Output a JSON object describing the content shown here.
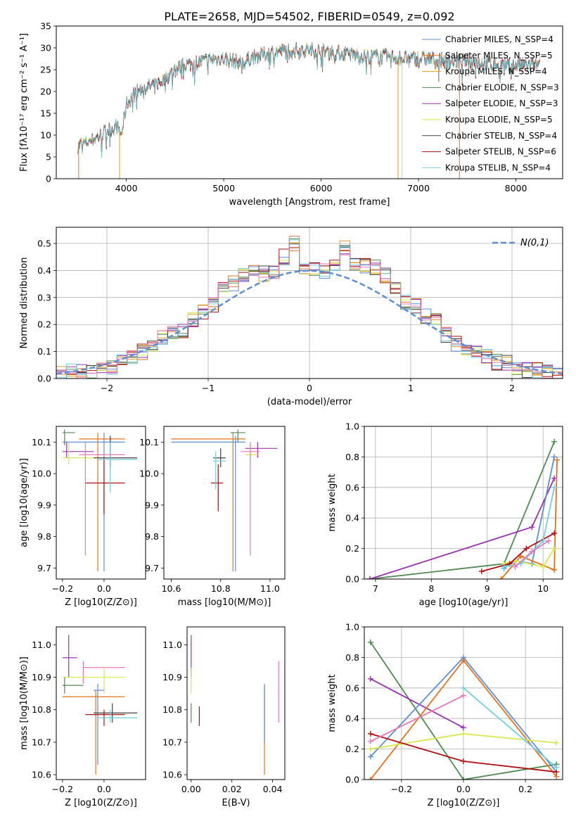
{
  "page": {
    "title": "PLATE=2658, MJD=54502, FIBERID=0549, z=0.092"
  },
  "colors": {
    "chabrier_miles": "#5b8fd6",
    "salpeter_miles": "#e8701a",
    "kroupa_miles": "#e0a31a",
    "chabrier_elodie": "#4f8a4f",
    "salpeter_elodie": "#9b30b0",
    "kroupa_elodie": "#d8e84a",
    "chabrier_stelib": "#404040",
    "salpeter_stelib": "#b01010",
    "kroupa_stelib": "#70d0e0",
    "pink": "#e878b8",
    "normal_curve": "#5b8fd6"
  },
  "chart_data": [
    {
      "id": "spectrum",
      "type": "line",
      "title": "PLATE=2658, MJD=54502, FIBERID=0549, z=0.092",
      "xlabel": "wavelength [Angstrom, rest frame]",
      "ylabel": "Flux [fλ10⁻¹⁷ erg cm⁻² s⁻¹ A⁻¹]",
      "xlim": [
        3280,
        8480
      ],
      "ylim": [
        0,
        35
      ],
      "xticks": [
        4000,
        5000,
        6000,
        7000,
        8000
      ],
      "yticks": [
        0,
        5,
        10,
        15,
        20,
        25,
        30,
        35
      ],
      "continuum": [
        [
          3500,
          7.5
        ],
        [
          3600,
          8.5
        ],
        [
          3700,
          9.5
        ],
        [
          3800,
          11
        ],
        [
          3900,
          12
        ],
        [
          3950,
          10
        ],
        [
          4000,
          17
        ],
        [
          4100,
          20
        ],
        [
          4200,
          21
        ],
        [
          4300,
          21.5
        ],
        [
          4400,
          23
        ],
        [
          4500,
          25
        ],
        [
          4600,
          26
        ],
        [
          4700,
          26.5
        ],
        [
          4800,
          27
        ],
        [
          4900,
          27.5
        ],
        [
          5000,
          27.5
        ],
        [
          5100,
          27
        ],
        [
          5200,
          26.5
        ],
        [
          5300,
          28
        ],
        [
          5500,
          29
        ],
        [
          5700,
          29.5
        ],
        [
          5900,
          29.5
        ],
        [
          6100,
          29
        ],
        [
          6300,
          28.5
        ],
        [
          6500,
          28
        ],
        [
          6700,
          28
        ],
        [
          6900,
          27.5
        ],
        [
          7100,
          27.5
        ],
        [
          7300,
          27
        ],
        [
          7500,
          27
        ],
        [
          7700,
          26.5
        ],
        [
          7900,
          26
        ],
        [
          8100,
          26
        ],
        [
          8250,
          26
        ]
      ],
      "legend": [
        {
          "label": "Chabrier MILES, N_SSP=4",
          "color_key": "chabrier_miles"
        },
        {
          "label": "Salpeter MILES, N_SSP=5",
          "color_key": "salpeter_miles"
        },
        {
          "label": "Kroupa MILES, N_SSP=4",
          "color_key": "kroupa_miles"
        },
        {
          "label": "Chabrier ELODIE, N_SSP=3",
          "color_key": "chabrier_elodie"
        },
        {
          "label": "Salpeter ELODIE, N_SSP=3",
          "color_key": "salpeter_elodie"
        },
        {
          "label": "Kroupa ELODIE, N_SSP=5",
          "color_key": "kroupa_elodie"
        },
        {
          "label": "Chabrier STELIB, N_SSP=4",
          "color_key": "chabrier_stelib"
        },
        {
          "label": "Salpeter STELIB, N_SSP=6",
          "color_key": "salpeter_stelib"
        },
        {
          "label": "Kroupa STELIB, N_SSP=4",
          "color_key": "kroupa_stelib"
        }
      ]
    },
    {
      "id": "residuals",
      "type": "line",
      "xlabel": "(data-model)/error",
      "ylabel": "Normed distribution",
      "xlim": [
        -2.5,
        2.5
      ],
      "ylim": [
        0,
        0.56
      ],
      "xticks": [
        -2,
        -1,
        0,
        1,
        2
      ],
      "yticks": [
        0.0,
        0.1,
        0.2,
        0.3,
        0.4,
        0.5
      ],
      "grid": true,
      "legend": "N(0,1)",
      "histogram": [
        0.02,
        0.03,
        0.03,
        0.02,
        0.03,
        0.04,
        0.06,
        0.08,
        0.1,
        0.12,
        0.15,
        0.17,
        0.18,
        0.22,
        0.25,
        0.27,
        0.33,
        0.35,
        0.38,
        0.4,
        0.39,
        0.4,
        0.45,
        0.5,
        0.4,
        0.41,
        0.4,
        0.42,
        0.48,
        0.43,
        0.42,
        0.41,
        0.38,
        0.33,
        0.28,
        0.27,
        0.23,
        0.21,
        0.16,
        0.13,
        0.11,
        0.1,
        0.08,
        0.06,
        0.06,
        0.04,
        0.03,
        0.03,
        0.02,
        0.02
      ]
    },
    {
      "id": "age_vs_z",
      "type": "scatter",
      "xlabel": "Z [log10(Z/Z⊙)]",
      "ylabel": "age  [log10(age/yr)]",
      "xlim": [
        -0.23,
        0.2
      ],
      "ylim": [
        9.665,
        10.15
      ],
      "xticks": [
        -0.2,
        0.0
      ],
      "yticks": [
        9.7,
        9.8,
        9.9,
        10.0,
        10.1
      ],
      "points": [
        {
          "c": "chabrier_miles",
          "x": 0.0,
          "y": 10.1,
          "x0": -0.2,
          "x1": 0.1,
          "y0": 9.69,
          "y1": 10.13
        },
        {
          "c": "salpeter_miles",
          "x": -0.03,
          "y": 10.11,
          "x0": -0.12,
          "x1": 0.1,
          "y0": 9.69,
          "y1": 10.13
        },
        {
          "c": "chabrier_elodie",
          "x": -0.19,
          "y": 10.13,
          "x0": -0.2,
          "x1": -0.14,
          "y0": 10.09,
          "y1": 10.14
        },
        {
          "c": "salpeter_elodie",
          "x": -0.18,
          "y": 10.07,
          "x0": -0.2,
          "x1": -0.05,
          "y0": 10.05,
          "y1": 10.1
        },
        {
          "c": "kroupa_elodie",
          "x": -0.17,
          "y": 10.05,
          "x0": -0.2,
          "x1": -0.05,
          "y0": 10.03,
          "y1": 10.1
        },
        {
          "c": "chabrier_stelib",
          "x": 0.03,
          "y": 10.05,
          "x0": -0.05,
          "x1": 0.16,
          "y0": 10.02,
          "y1": 10.12
        },
        {
          "c": "salpeter_stelib",
          "x": 0.0,
          "y": 9.97,
          "x0": -0.09,
          "x1": 0.1,
          "y0": 9.87,
          "y1": 10.05
        },
        {
          "c": "kroupa_stelib",
          "x": 0.03,
          "y": 10.045,
          "x0": -0.03,
          "x1": 0.16,
          "y0": 9.94,
          "y1": 10.1
        },
        {
          "c": "pink",
          "x": -0.09,
          "y": 10.06,
          "x0": -0.12,
          "x1": 0.1,
          "y0": 9.74,
          "y1": 10.1
        }
      ]
    },
    {
      "id": "age_vs_mass",
      "type": "scatter",
      "xlabel": "mass [log10(M/M⊙)]",
      "ylabel": "",
      "xlim": [
        10.57,
        11.06
      ],
      "ylim": [
        9.665,
        10.15
      ],
      "xticks": [
        10.6,
        10.8,
        11.0
      ],
      "yticks": [
        9.7,
        9.8,
        9.9,
        10.0,
        10.1
      ],
      "points": [
        {
          "c": "chabrier_miles",
          "x": 10.86,
          "y": 10.1,
          "x0": 10.6,
          "x1": 10.9,
          "y0": 9.69,
          "y1": 10.12
        },
        {
          "c": "salpeter_miles",
          "x": 10.85,
          "y": 10.11,
          "x0": 10.6,
          "x1": 10.9,
          "y0": 9.69,
          "y1": 10.13
        },
        {
          "c": "chabrier_elodie",
          "x": 10.87,
          "y": 10.13,
          "x0": 10.84,
          "x1": 10.9,
          "y0": 10.1,
          "y1": 10.14
        },
        {
          "c": "salpeter_elodie",
          "x": 10.95,
          "y": 10.08,
          "x0": 10.9,
          "x1": 11.03,
          "y0": 10.05,
          "y1": 10.1
        },
        {
          "c": "kroupa_elodie",
          "x": 10.92,
          "y": 10.06,
          "x0": 10.9,
          "x1": 10.95,
          "y0": 10.03,
          "y1": 10.1
        },
        {
          "c": "chabrier_stelib",
          "x": 10.8,
          "y": 10.05,
          "x0": 10.77,
          "x1": 10.82,
          "y0": 10.02,
          "y1": 10.08
        },
        {
          "c": "salpeter_stelib",
          "x": 10.79,
          "y": 9.97,
          "x0": 10.76,
          "x1": 10.81,
          "y0": 9.88,
          "y1": 10.03
        },
        {
          "c": "kroupa_stelib",
          "x": 10.78,
          "y": 10.04,
          "x0": 10.77,
          "x1": 10.82,
          "y0": 9.95,
          "y1": 10.07
        },
        {
          "c": "pink",
          "x": 10.92,
          "y": 10.07,
          "x0": 10.88,
          "x1": 10.96,
          "y0": 9.74,
          "y1": 10.1
        }
      ]
    },
    {
      "id": "weight_vs_age",
      "type": "line",
      "xlabel": "age  [log10(age/yr)]",
      "ylabel": "mass weight",
      "xlim": [
        6.8,
        10.35
      ],
      "ylim": [
        0,
        1.0
      ],
      "xticks": [
        7,
        8,
        9,
        10
      ],
      "yticks": [
        0.0,
        0.2,
        0.4,
        0.6,
        0.8,
        1.0
      ],
      "grid": true,
      "series": [
        {
          "c": "chabrier_elodie",
          "x": [
            6.9,
            9.3,
            10.2
          ],
          "y": [
            0.0,
            0.1,
            0.9
          ]
        },
        {
          "c": "salpeter_elodie",
          "x": [
            6.9,
            9.8,
            10.2
          ],
          "y": [
            0.0,
            0.34,
            0.66
          ]
        },
        {
          "c": "chabrier_miles",
          "x": [
            9.3,
            9.5,
            9.8,
            10.2
          ],
          "y": [
            0.07,
            0.12,
            0.1,
            0.8
          ]
        },
        {
          "c": "salpeter_miles",
          "x": [
            9.25,
            9.6,
            10.2,
            10.25
          ],
          "y": [
            0.0,
            0.15,
            0.06,
            0.78
          ]
        },
        {
          "c": "kroupa_elodie",
          "x": [
            9.3,
            9.5,
            10.0,
            10.2
          ],
          "y": [
            0.1,
            0.12,
            0.08,
            0.2
          ]
        },
        {
          "c": "salpeter_stelib",
          "x": [
            8.9,
            9.4,
            9.7,
            10.2
          ],
          "y": [
            0.05,
            0.1,
            0.2,
            0.3
          ]
        },
        {
          "c": "kroupa_stelib",
          "x": [
            9.3,
            9.6,
            10.0,
            10.2
          ],
          "y": [
            0.08,
            0.1,
            0.25,
            0.6
          ]
        },
        {
          "c": "pink",
          "x": [
            9.5,
            9.8,
            10.1
          ],
          "y": [
            0.08,
            0.18,
            0.25
          ]
        }
      ]
    },
    {
      "id": "mass_vs_z",
      "type": "scatter",
      "xlabel": "Z [log10(Z/Z⊙)]",
      "ylabel": "mass [log10(M/M⊙)]",
      "xlim": [
        -0.23,
        0.2
      ],
      "ylim": [
        10.585,
        11.055
      ],
      "xticks": [
        -0.2,
        0.0
      ],
      "yticks": [
        10.6,
        10.7,
        10.8,
        10.9,
        11.0
      ],
      "points": [
        {
          "c": "salpeter_elodie",
          "x": -0.17,
          "y": 10.96,
          "x0": -0.2,
          "x1": -0.13,
          "y0": 10.9,
          "y1": 11.03
        },
        {
          "c": "pink",
          "x": -0.1,
          "y": 10.93,
          "x0": -0.1,
          "x1": 0.1,
          "y0": 10.88,
          "y1": 10.95
        },
        {
          "c": "kroupa_elodie",
          "x": 0.0,
          "y": 10.9,
          "x0": -0.2,
          "x1": 0.1,
          "y0": 10.85,
          "y1": 10.93
        },
        {
          "c": "chabrier_elodie",
          "x": -0.19,
          "y": 10.875,
          "x0": -0.2,
          "x1": -0.1,
          "y0": 10.85,
          "y1": 10.9
        },
        {
          "c": "salpeter_miles",
          "x": -0.04,
          "y": 10.84,
          "x0": -0.2,
          "x1": 0.1,
          "y0": 10.6,
          "y1": 10.86
        },
        {
          "c": "chabrier_miles",
          "x": -0.03,
          "y": 10.86,
          "x0": -0.05,
          "x1": 0.0,
          "y0": 10.63,
          "y1": 10.88
        },
        {
          "c": "chabrier_stelib",
          "x": 0.04,
          "y": 10.79,
          "x0": -0.05,
          "x1": 0.16,
          "y0": 10.76,
          "y1": 10.82
        },
        {
          "c": "salpeter_stelib",
          "x": 0.0,
          "y": 10.785,
          "x0": -0.09,
          "x1": 0.1,
          "y0": 10.75,
          "y1": 10.8
        },
        {
          "c": "kroupa_stelib",
          "x": 0.03,
          "y": 10.775,
          "x0": -0.03,
          "x1": 0.16,
          "y0": 10.76,
          "y1": 10.8
        }
      ]
    },
    {
      "id": "mass_vs_ebv",
      "type": "scatter",
      "xlabel": "E(B-V)",
      "ylabel": "",
      "xlim": [
        -0.002,
        0.046
      ],
      "ylim": [
        10.585,
        11.055
      ],
      "xticks": [
        0.0,
        0.02,
        0.04
      ],
      "yticks": [
        10.6,
        10.7,
        10.8,
        10.9,
        11.0
      ],
      "points": [
        {
          "c": "salpeter_elodie",
          "x": 0.0,
          "y": 10.96,
          "y0": 10.9,
          "y1": 11.03
        },
        {
          "c": "kroupa_elodie",
          "x": 0.0,
          "y": 10.9,
          "y0": 10.85,
          "y1": 10.93
        },
        {
          "c": "chabrier_elodie",
          "x": 0.0,
          "y": 10.8,
          "y0": 10.76,
          "y1": 10.82
        },
        {
          "c": "salpeter_stelib",
          "x": 0.004,
          "y": 10.78,
          "y0": 10.75,
          "y1": 10.81
        },
        {
          "c": "salpeter_miles",
          "x": 0.036,
          "y": 10.75,
          "y0": 10.6,
          "y1": 10.87
        },
        {
          "c": "chabrier_miles",
          "x": 0.036,
          "y": 10.8,
          "y0": 10.7,
          "y1": 10.88
        },
        {
          "c": "pink",
          "x": 0.043,
          "y": 10.85,
          "y0": 10.76,
          "y1": 10.95
        }
      ]
    },
    {
      "id": "weight_vs_z",
      "type": "line",
      "xlabel": "Z [log10(Z/Z⊙)]",
      "ylabel": "mass weight",
      "xlim": [
        -0.32,
        0.32
      ],
      "ylim": [
        0,
        1.0
      ],
      "xticks": [
        -0.2,
        0.0,
        0.2
      ],
      "yticks": [
        0.0,
        0.2,
        0.4,
        0.6,
        0.8,
        1.0
      ],
      "grid": true,
      "series": [
        {
          "c": "chabrier_elodie",
          "x": [
            -0.3,
            0.0,
            0.3
          ],
          "y": [
            0.9,
            0.0,
            0.1
          ]
        },
        {
          "c": "salpeter_elodie",
          "x": [
            -0.3,
            0.0
          ],
          "y": [
            0.66,
            0.34
          ]
        },
        {
          "c": "chabrier_miles",
          "x": [
            -0.3,
            0.0,
            0.3
          ],
          "y": [
            0.15,
            0.8,
            0.05
          ]
        },
        {
          "c": "salpeter_miles",
          "x": [
            -0.3,
            0.0,
            0.3
          ],
          "y": [
            0.0,
            0.78,
            0.02
          ]
        },
        {
          "c": "kroupa_elodie",
          "x": [
            -0.3,
            0.0,
            0.3
          ],
          "y": [
            0.2,
            0.3,
            0.24
          ]
        },
        {
          "c": "salpeter_stelib",
          "x": [
            -0.3,
            0.0,
            0.3
          ],
          "y": [
            0.3,
            0.12,
            0.05
          ]
        },
        {
          "c": "kroupa_stelib",
          "x": [
            0.0,
            0.3
          ],
          "y": [
            0.6,
            0.08
          ]
        },
        {
          "c": "pink",
          "x": [
            -0.3,
            0.0
          ],
          "y": [
            0.25,
            0.55
          ]
        }
      ]
    }
  ]
}
